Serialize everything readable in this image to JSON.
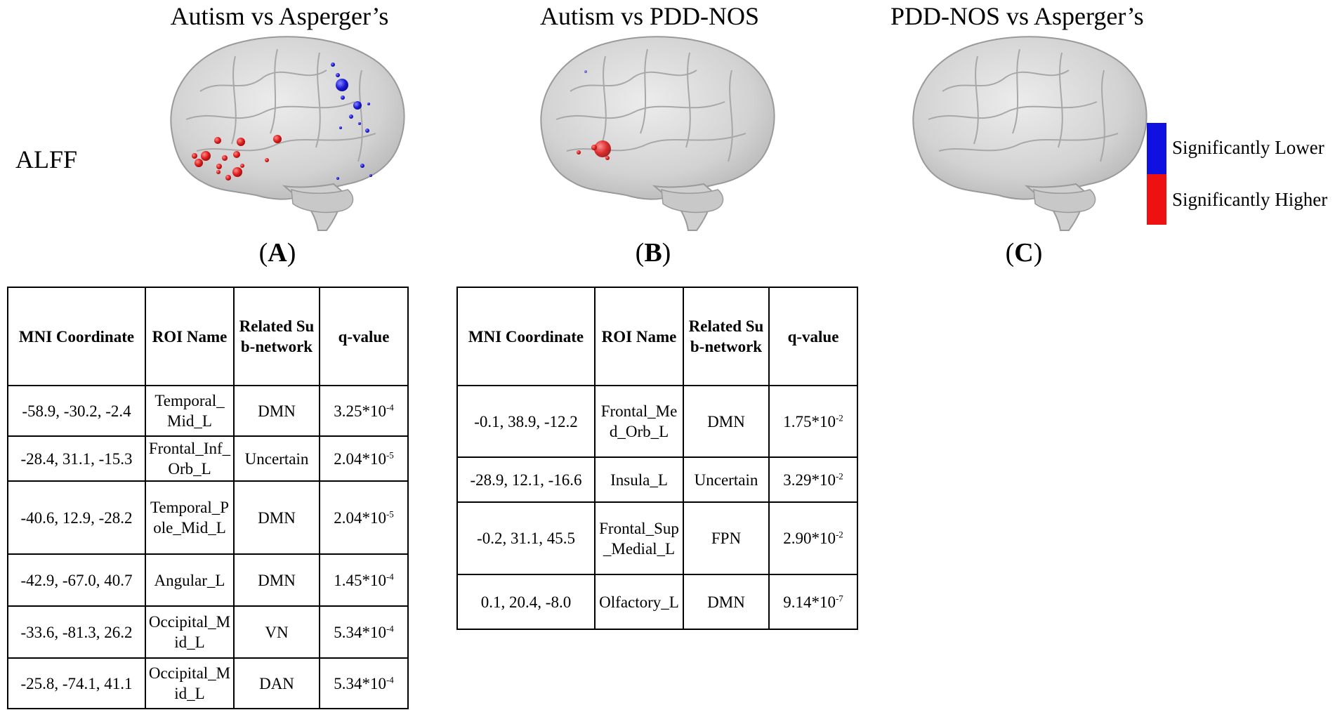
{
  "titles": {
    "a": "Autism vs Asperger’s",
    "b": "Autism vs PDD-NOS",
    "c": "PDD-NOS vs Asperger’s"
  },
  "row_label": "ALFF",
  "panel_labels": {
    "a_open": "(",
    "a_letter": "A",
    "a_close": ")",
    "b_open": "(",
    "b_letter": "B",
    "b_close": ")",
    "c_open": "(",
    "c_letter": "C",
    "c_close": ")"
  },
  "legend": {
    "lower": {
      "label": "Significantly Lower",
      "color": "#1010e0"
    },
    "higher": {
      "label": "Significantly Higher",
      "color": "#ee1111"
    }
  },
  "table_headers": {
    "mni": "MNI Coordinate",
    "roi": "ROI Name",
    "subnet": "Related Sub-network",
    "q": "q-value"
  },
  "table_a": [
    {
      "mni": "-58.9, -30.2, -2.4",
      "roi": "Temporal_Mid_L",
      "subnet": "DMN",
      "q_base": "3.25*10",
      "q_exp": "-4"
    },
    {
      "mni": "-28.4, 31.1, -15.3",
      "roi": "Frontal_Inf_Orb_L",
      "subnet": "Uncertain",
      "q_base": "2.04*10",
      "q_exp": "-5"
    },
    {
      "mni": "-40.6, 12.9, -28.2",
      "roi": "Temporal_Pole_Mid_L",
      "subnet": "DMN",
      "q_base": "2.04*10",
      "q_exp": "-5"
    },
    {
      "mni": "-42.9, -67.0, 40.7",
      "roi": "Angular_L",
      "subnet": "DMN",
      "q_base": "1.45*10",
      "q_exp": "-4"
    },
    {
      "mni": "-33.6, -81.3, 26.2",
      "roi": "Occipital_Mid_L",
      "subnet": "VN",
      "q_base": "5.34*10",
      "q_exp": "-4"
    },
    {
      "mni": "-25.8, -74.1, 41.1",
      "roi": "Occipital_Mid_L",
      "subnet": "DAN",
      "q_base": "5.34*10",
      "q_exp": "-4"
    }
  ],
  "table_b": [
    {
      "mni": "-0.1, 38.9, -12.2",
      "roi": "Frontal_Med_Orb_L",
      "subnet": "DMN",
      "q_base": "1.75*10",
      "q_exp": "-2"
    },
    {
      "mni": "-28.9, 12.1, -16.6",
      "roi": "Insula_L",
      "subnet": "Uncertain",
      "q_base": "3.29*10",
      "q_exp": "-2"
    },
    {
      "mni": "-0.2, 31.1, 45.5",
      "roi": "Frontal_Sup_Medial_L",
      "subnet": "FPN",
      "q_base": "2.90*10",
      "q_exp": "-2"
    },
    {
      "mni": "0.1, 20.4, -8.0",
      "roi": "Olfactory_L",
      "subnet": "DMN",
      "q_base": "9.14*10",
      "q_exp": "-7"
    }
  ]
}
